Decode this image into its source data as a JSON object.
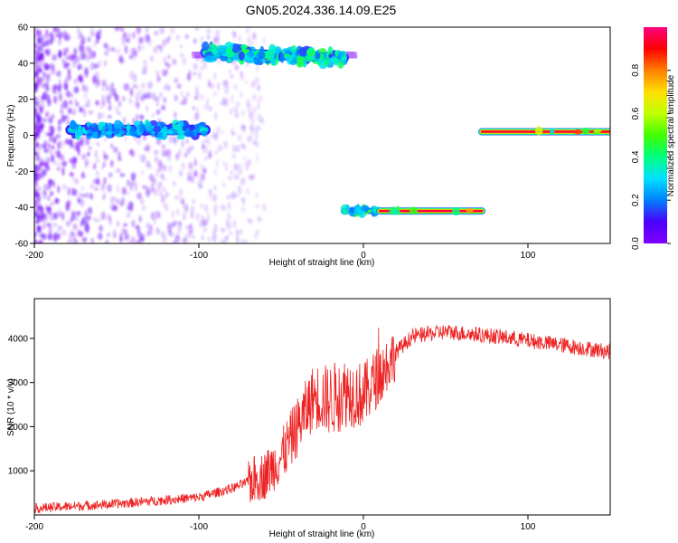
{
  "title": "GN05.2024.336.14.09.E25",
  "chart_data": [
    {
      "type": "heatmap",
      "xlabel": "Height of straight line (km)",
      "ylabel": "Frequency (Hz)",
      "xlim": [
        -200,
        150
      ],
      "ylim": [
        -60,
        60
      ],
      "xticks": [
        -200,
        -100,
        0,
        100
      ],
      "yticks": [
        -60,
        -40,
        -20,
        0,
        20,
        40,
        60
      ],
      "colorbar": {
        "label": "Normalized spectral amplitude",
        "range": [
          0,
          1
        ],
        "ticks": [
          "0.0",
          "0.2",
          "0.4",
          "0.6",
          "0.8"
        ],
        "colormap": [
          "#8000ff",
          "#4b00ff",
          "#0080ff",
          "#00e0ff",
          "#00ff80",
          "#40ff00",
          "#c0ff00",
          "#ffe000",
          "#ff8000",
          "#ff0000",
          "#ff0080"
        ]
      },
      "features": [
        {
          "name": "scatter-noise",
          "x_range": [
            -200,
            -60
          ],
          "y_range": [
            -60,
            60
          ],
          "amplitude": 0.05
        },
        {
          "name": "band-center",
          "x_range": [
            -178,
            -96
          ],
          "freq": 3,
          "amplitude": 0.35
        },
        {
          "name": "band-upper",
          "x_range": [
            -96,
            -12
          ],
          "freq_start": 46,
          "freq_end": 43,
          "amplitude": 0.45
        },
        {
          "name": "band-lower-left",
          "x_range": [
            -12,
            10
          ],
          "freq": -42,
          "amplitude": 0.5
        },
        {
          "name": "band-lower",
          "x_range": [
            10,
            72
          ],
          "freq": -42,
          "amplitude": 0.95
        },
        {
          "name": "band-right",
          "x_range": [
            72,
            150
          ],
          "freq": 2,
          "amplitude": 0.95
        }
      ]
    },
    {
      "type": "line",
      "xlabel": "Height of straight line (km)",
      "ylabel": "SNR (10 * v/v)",
      "xlim": [
        -200,
        150
      ],
      "ylim": [
        0,
        4900
      ],
      "xticks": [
        -200,
        -100,
        0,
        100
      ],
      "yticks": [
        1000,
        2000,
        3000,
        4000
      ],
      "color": "#ee2222",
      "x": [
        -200,
        -150,
        -100,
        -80,
        -60,
        -50,
        -40,
        -30,
        -20,
        -10,
        0,
        10,
        20,
        30,
        50,
        80,
        100,
        120,
        150
      ],
      "y": [
        150,
        250,
        400,
        600,
        900,
        1300,
        2000,
        2700,
        2600,
        2800,
        2700,
        3200,
        3700,
        4050,
        4150,
        4050,
        3950,
        3850,
        3700
      ]
    }
  ]
}
